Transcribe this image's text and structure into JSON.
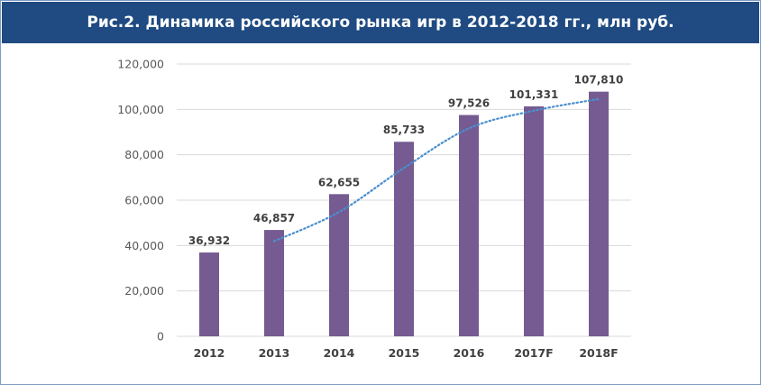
{
  "title": "Рис.2. Динамика российского рынка игр в 2012-2018 гг., млн руб.",
  "colors": {
    "banner": "#1f4b82",
    "bar": "#755b91",
    "trend": "#4a8fcf",
    "grid": "#d9d9d9"
  },
  "chart_data": {
    "type": "bar",
    "title": "Рис.2. Динамика российского рынка игр в 2012-2018 гг., млн руб.",
    "categories": [
      "2012",
      "2013",
      "2014",
      "2015",
      "2016",
      "2017F",
      "2018F"
    ],
    "values": [
      36932,
      46857,
      62655,
      85733,
      97526,
      101331,
      107810
    ],
    "data_labels": [
      "36,932",
      "46,857",
      "62,655",
      "85,733",
      "97,526",
      "101,331",
      "107,810"
    ],
    "y_ticks": [
      "0",
      "20,000",
      "40,000",
      "60,000",
      "80,000",
      "100,000",
      "120,000"
    ],
    "ylim": [
      0,
      120000
    ],
    "grid": true,
    "legend": "none",
    "trendline": {
      "style": "dotted",
      "x": [
        "2013",
        "2014",
        "2015",
        "2016",
        "2017F",
        "2018F"
      ],
      "y": [
        41900,
        54760,
        74190,
        91630,
        99430,
        104570
      ]
    }
  }
}
